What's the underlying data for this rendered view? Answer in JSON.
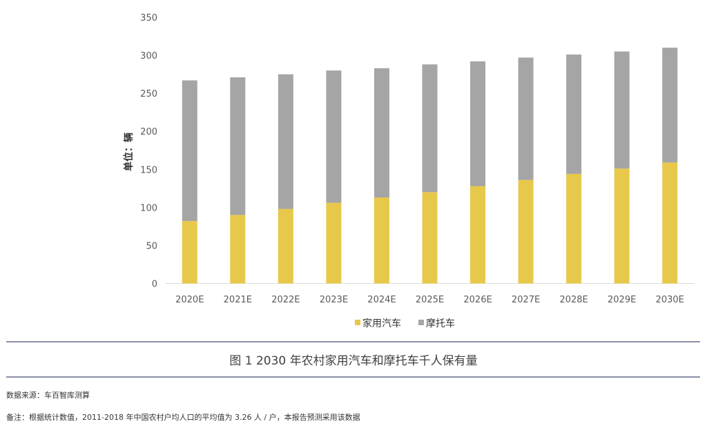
{
  "chart_data": {
    "type": "bar",
    "stacked": true,
    "categories": [
      "2020E",
      "2021E",
      "2022E",
      "2023E",
      "2024E",
      "2025E",
      "2026E",
      "2027E",
      "2028E",
      "2029E",
      "2030E"
    ],
    "series": [
      {
        "name": "家用汽车",
        "color": "#e8c84a",
        "values": [
          82,
          90,
          98,
          106,
          113,
          120,
          128,
          136,
          144,
          151,
          159
        ]
      },
      {
        "name": "摩托车",
        "color": "#a5a5a5",
        "values": [
          185,
          181,
          177,
          174,
          170,
          168,
          164,
          161,
          157,
          154,
          151
        ]
      }
    ],
    "ylabel": "单位：辆",
    "ylim": [
      0,
      350
    ],
    "yticks": [
      0,
      50,
      100,
      150,
      200,
      250,
      300,
      350
    ],
    "grid": false,
    "legend": "bottom"
  },
  "caption": "图 1 2030 年农村家用汽车和摩托车千人保有量",
  "source": "数据来源：车百智库测算",
  "note": "备注：根据统计数值，2011-2018 年中国农村户均人口的平均值为 3.26 人 / 户，本报告预测采用该数据"
}
